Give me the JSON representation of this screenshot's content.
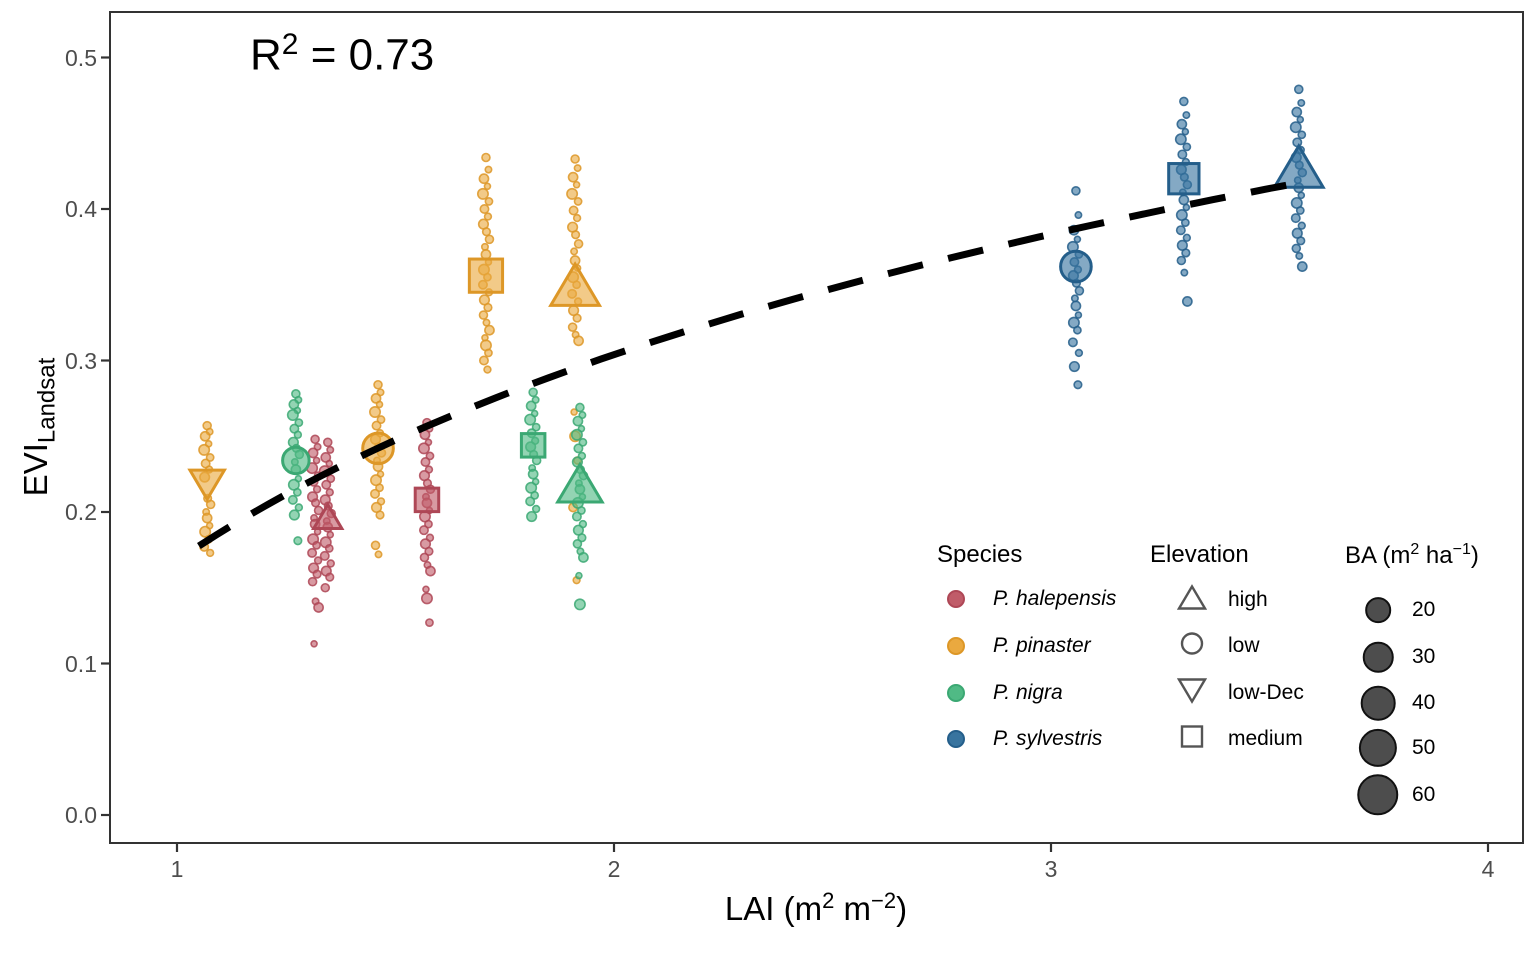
{
  "annotation": {
    "base": "R",
    "exponent": "2",
    "rest": " = 0.73"
  },
  "axes": {
    "x": {
      "title_parts": {
        "t1": "LAI (m",
        "sup1": "2",
        "t2": " m",
        "sup2": "−2",
        "t3": ")"
      },
      "ticks": [
        "1",
        "2",
        "3",
        "4"
      ],
      "tick_values": [
        1,
        2,
        3,
        4
      ]
    },
    "y": {
      "title_base": "EVI",
      "title_sub": "Landsat",
      "ticks": [
        "0.0",
        "0.1",
        "0.2",
        "0.3",
        "0.4",
        "0.5"
      ],
      "tick_values": [
        0.0,
        0.1,
        0.2,
        0.3,
        0.4,
        0.5
      ]
    }
  },
  "legends": {
    "species": {
      "title": "Species",
      "items": [
        {
          "label": "P. halepensis",
          "fill": "#C05C69",
          "stroke": "#AE4756"
        },
        {
          "label": "P. pinaster",
          "fill": "#EAA93F",
          "stroke": "#DD9727"
        },
        {
          "label": "P. nigra",
          "fill": "#50BA85",
          "stroke": "#3BA873"
        },
        {
          "label": "P. sylvestris",
          "fill": "#38749F",
          "stroke": "#245E8A"
        }
      ]
    },
    "elevation": {
      "title": "Elevation",
      "outline_color": "#555555",
      "items": [
        {
          "label": "high",
          "shape": "triangle-up"
        },
        {
          "label": "low",
          "shape": "circle"
        },
        {
          "label": "low-Dec",
          "shape": "triangle-down"
        },
        {
          "label": "medium",
          "shape": "square"
        }
      ]
    },
    "ba": {
      "title_parts": {
        "t1": "BA (m",
        "sup1": "2",
        "t2": " ha",
        "sup2": "−1",
        "t3": ")"
      },
      "fill": "#4d4d4d",
      "items": [
        {
          "label": "20",
          "value": 20
        },
        {
          "label": "30",
          "value": 30
        },
        {
          "label": "40",
          "value": 40
        },
        {
          "label": "50",
          "value": 50
        },
        {
          "label": "60",
          "value": 60
        }
      ]
    }
  },
  "chart_data": {
    "type": "scatter",
    "xlabel": "LAI (m2 m-2)",
    "ylabel": "EVI_Landsat",
    "xlim": [
      0.85,
      4.1
    ],
    "ylim": [
      -0.02,
      0.53
    ],
    "x_ticks": [
      1,
      2,
      3,
      4
    ],
    "y_ticks": [
      0.0,
      0.1,
      0.2,
      0.3,
      0.4,
      0.5
    ],
    "grid": false,
    "r_squared": 0.73,
    "annotation_text": "R2 = 0.73",
    "trendline": {
      "style": "dashed",
      "color": "#000000",
      "model": "EVI = 0.168 + 0.196 * ln(LAI)",
      "a": 0.168,
      "b": 0.196,
      "domain": [
        1.05,
        3.58
      ]
    },
    "species_colors": {
      "P. halepensis": {
        "fill": "#C05C69",
        "stroke": "#AE4756"
      },
      "P. pinaster": {
        "fill": "#EAA93F",
        "stroke": "#DD9727"
      },
      "P. nigra": {
        "fill": "#50BA85",
        "stroke": "#3BA873"
      },
      "P. sylvestris": {
        "fill": "#38749F",
        "stroke": "#245E8A"
      }
    },
    "clusters": [
      {
        "species": "P. pinaster",
        "elevation": "low-Dec",
        "shape": "triangle-down",
        "lai": 1.069,
        "evi": 0.218,
        "ba": 30,
        "point_columns": [
          {
            "lai": 1.069,
            "evi": [
              0.257,
              0.253,
              0.25,
              0.245,
              0.241,
              0.236,
              0.232,
              0.228,
              0.223,
              0.209,
              0.205,
              0.2,
              0.196,
              0.191,
              0.187,
              0.182,
              0.177,
              0.173
            ]
          }
        ]
      },
      {
        "species": "P. nigra",
        "elevation": "low",
        "shape": "circle",
        "lai": 1.272,
        "evi": 0.234,
        "ba": 30,
        "point_columns": [
          {
            "lai": 1.272,
            "evi": [
              0.278,
              0.274,
              0.271,
              0.267,
              0.264,
              0.259,
              0.255,
              0.251,
              0.246,
              0.242,
              0.238,
              0.233,
              0.228,
              0.222,
              0.218,
              0.213,
              0.208,
              0.203,
              0.198,
              0.181
            ]
          }
        ]
      },
      {
        "species": "P. halepensis",
        "elevation": "high",
        "shape": "triangle-up",
        "lai": 1.345,
        "evi": 0.197,
        "ba": 20,
        "point_columns": [
          {
            "lai": 1.316,
            "evi": [
              0.248,
              0.243,
              0.239,
              0.234,
              0.229,
              0.224,
              0.22,
              0.215,
              0.21,
              0.206,
              0.201,
              0.196,
              0.192,
              0.187,
              0.182,
              0.178,
              0.173,
              0.168,
              0.163,
              0.159,
              0.154,
              0.141,
              0.137,
              0.113
            ]
          },
          {
            "lai": 1.345,
            "evi": [
              0.246,
              0.241,
              0.236,
              0.232,
              0.227,
              0.222,
              0.218,
              0.213,
              0.208,
              0.204,
              0.199,
              0.194,
              0.19,
              0.185,
              0.18,
              0.176,
              0.171,
              0.166,
              0.161,
              0.157,
              0.15
            ]
          }
        ]
      },
      {
        "species": "P. pinaster",
        "elevation": "low",
        "shape": "circle",
        "lai": 1.46,
        "evi": 0.242,
        "ba": 40,
        "point_columns": [
          {
            "lai": 1.46,
            "evi": [
              0.284,
              0.279,
              0.275,
              0.271,
              0.266,
              0.261,
              0.257,
              0.252,
              0.248,
              0.243,
              0.239,
              0.234,
              0.23,
              0.225,
              0.221,
              0.216,
              0.212,
              0.207,
              0.203,
              0.198,
              0.178,
              0.172
            ]
          }
        ]
      },
      {
        "species": "P. halepensis",
        "elevation": "medium",
        "shape": "square",
        "lai": 1.572,
        "evi": 0.208,
        "ba": 30,
        "point_columns": [
          {
            "lai": 1.572,
            "evi": [
              0.259,
              0.255,
              0.251,
              0.246,
              0.242,
              0.237,
              0.233,
              0.228,
              0.224,
              0.219,
              0.215,
              0.21,
              0.206,
              0.201,
              0.197,
              0.192,
              0.188,
              0.183,
              0.179,
              0.174,
              0.17,
              0.165,
              0.161,
              0.149,
              0.143,
              0.127
            ]
          }
        ]
      },
      {
        "species": "P. pinaster",
        "elevation": "medium",
        "shape": "square",
        "lai": 1.707,
        "evi": 0.356,
        "ba": 60,
        "point_columns": [
          {
            "lai": 1.707,
            "evi": [
              0.434,
              0.426,
              0.42,
              0.415,
              0.41,
              0.405,
              0.4,
              0.395,
              0.39,
              0.385,
              0.38,
              0.375,
              0.37,
              0.365,
              0.36,
              0.355,
              0.35,
              0.345,
              0.34,
              0.335,
              0.33,
              0.325,
              0.32,
              0.315,
              0.31,
              0.305,
              0.3,
              0.294
            ]
          }
        ]
      },
      {
        "species": "P. nigra",
        "elevation": "medium",
        "shape": "square",
        "lai": 1.815,
        "evi": 0.244,
        "ba": 30,
        "point_columns": [
          {
            "lai": 1.815,
            "evi": [
              0.279,
              0.274,
              0.27,
              0.265,
              0.261,
              0.256,
              0.252,
              0.247,
              0.243,
              0.238,
              0.234,
              0.229,
              0.225,
              0.22,
              0.216,
              0.211,
              0.207,
              0.202,
              0.197
            ]
          }
        ]
      },
      {
        "species": "P. pinaster",
        "elevation": "high",
        "shape": "triangle-up",
        "lai": 1.911,
        "evi": 0.35,
        "ba": 60,
        "point_columns": [
          {
            "lai": 1.911,
            "evi": [
              0.433,
              0.427,
              0.421,
              0.416,
              0.41,
              0.405,
              0.399,
              0.394,
              0.388,
              0.383,
              0.377,
              0.372,
              0.366,
              0.361,
              0.355,
              0.35,
              0.344,
              0.339,
              0.333,
              0.328,
              0.322,
              0.317,
              0.313,
              0.266,
              0.25,
              0.234,
              0.203,
              0.155
            ]
          }
        ]
      },
      {
        "species": "P. nigra",
        "elevation": "high",
        "shape": "triangle-up",
        "lai": 1.922,
        "evi": 0.219,
        "ba": 50,
        "point_columns": [
          {
            "lai": 1.922,
            "evi": [
              0.269,
              0.264,
              0.26,
              0.255,
              0.251,
              0.246,
              0.242,
              0.237,
              0.233,
              0.228,
              0.224,
              0.219,
              0.215,
              0.21,
              0.206,
              0.201,
              0.197,
              0.192,
              0.188,
              0.183,
              0.179,
              0.174,
              0.17,
              0.158,
              0.139
            ]
          }
        ]
      },
      {
        "species": "P. sylvestris",
        "elevation": "low",
        "shape": "circle",
        "lai": 3.057,
        "evi": 0.362,
        "ba": 40,
        "point_columns": [
          {
            "lai": 3.057,
            "evi": [
              0.412,
              0.396,
              0.386,
              0.38,
              0.375,
              0.37,
              0.365,
              0.36,
              0.356,
              0.351,
              0.346,
              0.341,
              0.336,
              0.33,
              0.325,
              0.32,
              0.312,
              0.305,
              0.296,
              0.284
            ]
          }
        ]
      },
      {
        "species": "P. sylvestris",
        "elevation": "medium",
        "shape": "square",
        "lai": 3.304,
        "evi": 0.42,
        "ba": 50,
        "point_columns": [
          {
            "lai": 3.304,
            "evi": [
              0.471,
              0.462,
              0.456,
              0.451,
              0.446,
              0.441,
              0.436,
              0.431,
              0.426,
              0.421,
              0.416,
              0.411,
              0.406,
              0.401,
              0.396,
              0.391,
              0.386,
              0.381,
              0.376,
              0.371,
              0.366,
              0.358,
              0.339
            ]
          }
        ]
      },
      {
        "species": "P. sylvestris",
        "elevation": "high",
        "shape": "triangle-up",
        "lai": 3.567,
        "evi": 0.428,
        "ba": 60,
        "point_columns": [
          {
            "lai": 3.567,
            "evi": [
              0.479,
              0.47,
              0.464,
              0.459,
              0.454,
              0.449,
              0.444,
              0.439,
              0.434,
              0.429,
              0.424,
              0.419,
              0.414,
              0.409,
              0.404,
              0.399,
              0.394,
              0.389,
              0.384,
              0.379,
              0.374,
              0.369,
              0.362
            ]
          }
        ]
      }
    ]
  }
}
